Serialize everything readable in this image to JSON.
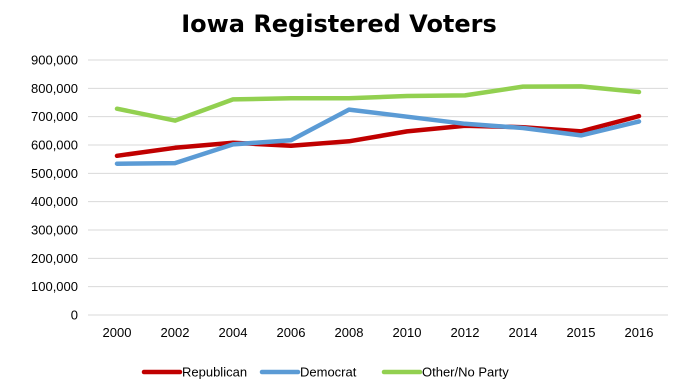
{
  "chart_data": {
    "type": "line",
    "title": "Iowa Registered Voters",
    "xlabel": "",
    "ylabel": "",
    "categories": [
      "2000",
      "2002",
      "2004",
      "2006",
      "2008",
      "2010",
      "2012",
      "2014",
      "2015",
      "2016"
    ],
    "yticks": [
      "0",
      "100,000",
      "200,000",
      "300,000",
      "400,000",
      "500,000",
      "600,000",
      "700,000",
      "800,000",
      "900,000"
    ],
    "ylim": [
      0,
      900000
    ],
    "grid": true,
    "legend_position": "bottom",
    "series": [
      {
        "name": "Republican",
        "color": "#C00000",
        "values": [
          562000,
          590000,
          608000,
          597000,
          613000,
          648000,
          668000,
          663000,
          648000,
          702000
        ]
      },
      {
        "name": "Democrat",
        "color": "#5B9BD5",
        "values": [
          534000,
          536000,
          602000,
          617000,
          725000,
          700000,
          675000,
          660000,
          634000,
          683000
        ]
      },
      {
        "name": "Other/No Party",
        "color": "#92D050",
        "values": [
          728000,
          686000,
          761000,
          765000,
          765000,
          773000,
          775000,
          806000,
          807000,
          787000
        ]
      }
    ]
  }
}
